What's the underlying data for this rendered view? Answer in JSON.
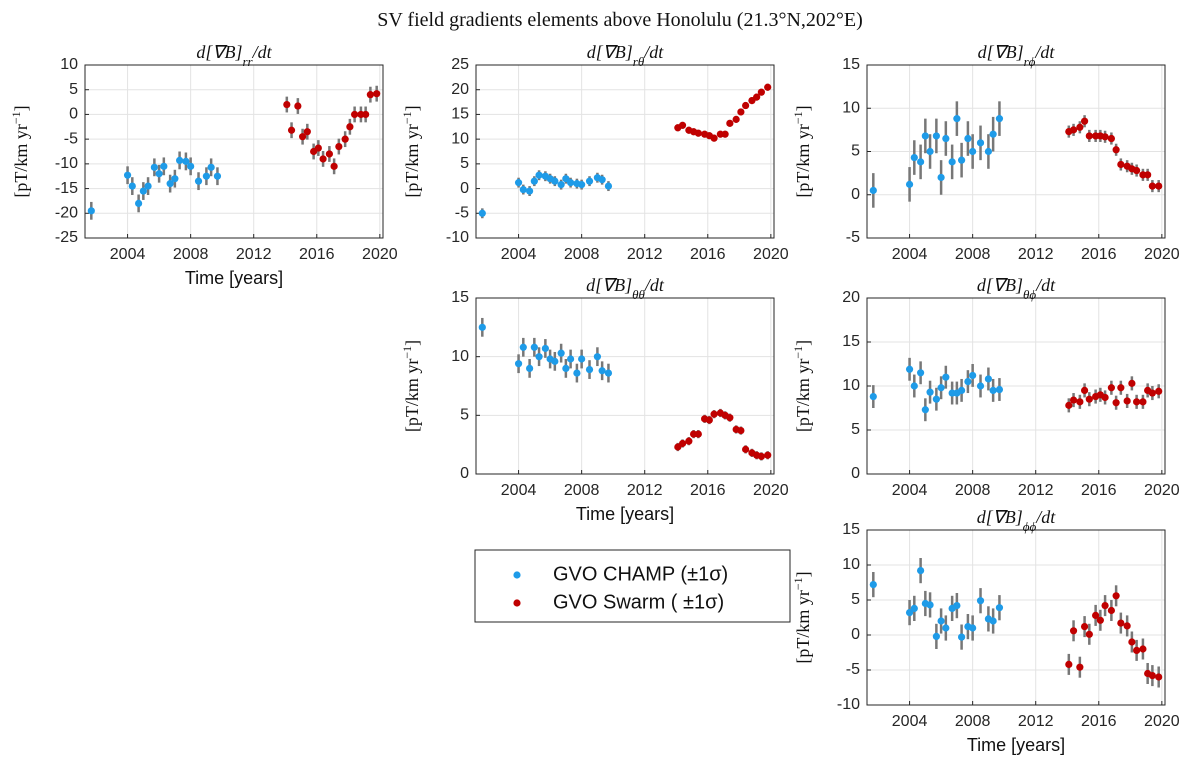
{
  "title": "SV field gradients elements above Honolulu (21.3°N,202°E)",
  "chart_data": [
    {
      "type": "scatter",
      "title": {
        "main": "d[∇B]",
        "sub": "rr",
        "tail": "/dt"
      },
      "ylabel": {
        "main": "[pT/km yr",
        "sup": "−1",
        "tail": "]"
      },
      "xlabel": "Time [years]",
      "xlim": [
        2001.3,
        2020.2
      ],
      "xticks": [
        2004,
        2008,
        2012,
        2016,
        2020
      ],
      "ylim": [
        -25,
        10
      ],
      "yticks": [
        -25,
        -20,
        -15,
        -10,
        -5,
        0,
        5,
        10
      ],
      "grid": true,
      "series": [
        {
          "name": "GVO CHAMP (±1σ)",
          "color": "#1e9be8",
          "x": [
            2001.7,
            2004.0,
            2004.3,
            2004.7,
            2005.0,
            2005.3,
            2005.7,
            2006.0,
            2006.3,
            2006.7,
            2007.0,
            2007.3,
            2007.7,
            2008.0,
            2008.5,
            2009.0,
            2009.3,
            2009.7
          ],
          "values": [
            -19.5,
            -12.3,
            -14.5,
            -18,
            -15.5,
            -14.5,
            -10.7,
            -12,
            -10.5,
            -14,
            -13,
            -9.3,
            -9.5,
            -10.5,
            -13.5,
            -12.5,
            -10.7,
            -12.5
          ],
          "errors": [
            1.8,
            1.8,
            1.8,
            1.8,
            1.8,
            1.8,
            1.8,
            1.8,
            1.8,
            1.8,
            1.8,
            1.8,
            1.8,
            1.8,
            1.8,
            1.8,
            1.8,
            1.8
          ]
        },
        {
          "name": "GVO Swarm ( ±1σ)",
          "color": "#c00000",
          "x": [
            2014.1,
            2014.4,
            2014.8,
            2015.1,
            2015.4,
            2015.8,
            2016.1,
            2016.4,
            2016.8,
            2017.1,
            2017.4,
            2017.8,
            2018.1,
            2018.4,
            2018.8,
            2019.1,
            2019.4,
            2019.8
          ],
          "values": [
            2,
            -3.2,
            1.7,
            -4.5,
            -3.5,
            -7.5,
            -6.8,
            -9,
            -8,
            -10.5,
            -6.5,
            -5,
            -2.5,
            0,
            0,
            0,
            4,
            4.2
          ],
          "errors": [
            1.6,
            1.6,
            1.6,
            1.6,
            1.6,
            1.6,
            1.6,
            1.6,
            1.6,
            1.6,
            1.6,
            1.6,
            1.6,
            1.6,
            1.6,
            1.6,
            1.6,
            1.6
          ]
        }
      ]
    },
    {
      "type": "scatter",
      "title": {
        "main": "d[∇B]",
        "sub": "rθ",
        "tail": "/dt"
      },
      "ylabel": {
        "main": "[pT/km yr",
        "sup": "−1",
        "tail": "]"
      },
      "xlim": [
        2001.3,
        2020.2
      ],
      "xticks": [
        2004,
        2008,
        2012,
        2016,
        2020
      ],
      "ylim": [
        -10,
        25
      ],
      "yticks": [
        -10,
        -5,
        0,
        5,
        10,
        15,
        20,
        25
      ],
      "grid": true,
      "series": [
        {
          "name": "GVO CHAMP (±1σ)",
          "color": "#1e9be8",
          "x": [
            2001.7,
            2004.0,
            2004.3,
            2004.7,
            2005.0,
            2005.3,
            2005.7,
            2006.0,
            2006.3,
            2006.7,
            2007.0,
            2007.3,
            2007.7,
            2008.0,
            2008.5,
            2009.0,
            2009.3,
            2009.7
          ],
          "values": [
            -5,
            1.2,
            -0.2,
            -0.5,
            1.5,
            2.7,
            2.5,
            2,
            1.5,
            0.8,
            2,
            1.2,
            1,
            0.8,
            1.5,
            2.2,
            1.8,
            0.5
          ],
          "errors": [
            1,
            1,
            1,
            1,
            1,
            1,
            1,
            1,
            1,
            1,
            1,
            1,
            1,
            1,
            1,
            1,
            1,
            1
          ]
        },
        {
          "name": "GVO Swarm ( ±1σ)",
          "color": "#c00000",
          "x": [
            2014.1,
            2014.4,
            2014.8,
            2015.1,
            2015.4,
            2015.8,
            2016.1,
            2016.4,
            2016.8,
            2017.1,
            2017.4,
            2017.8,
            2018.1,
            2018.4,
            2018.8,
            2019.1,
            2019.4,
            2019.8
          ],
          "values": [
            12.3,
            12.8,
            11.8,
            11.5,
            11.2,
            11,
            10.7,
            10.2,
            11,
            11,
            13.2,
            14,
            15.5,
            16.8,
            17.8,
            18.5,
            19.5,
            20.5
          ],
          "errors": [
            0.7,
            0.7,
            0.7,
            0.7,
            0.7,
            0.7,
            0.7,
            0.7,
            0.7,
            0.7,
            0.7,
            0.7,
            0.7,
            0.7,
            0.7,
            0.7,
            0.7,
            0.7
          ]
        }
      ]
    },
    {
      "type": "scatter",
      "title": {
        "main": "d[∇B]",
        "sub": "rϕ",
        "tail": "/dt"
      },
      "ylabel": {
        "main": "[pT/km yr",
        "sup": "−1",
        "tail": "]"
      },
      "xlim": [
        2001.3,
        2020.2
      ],
      "xticks": [
        2004,
        2008,
        2012,
        2016,
        2020
      ],
      "ylim": [
        -5,
        15
      ],
      "yticks": [
        -5,
        0,
        5,
        10,
        15
      ],
      "grid": true,
      "series": [
        {
          "name": "GVO CHAMP (±1σ)",
          "color": "#1e9be8",
          "x": [
            2001.7,
            2004.0,
            2004.3,
            2004.7,
            2005.0,
            2005.3,
            2005.7,
            2006.0,
            2006.3,
            2006.7,
            2007.0,
            2007.3,
            2007.7,
            2008.0,
            2008.5,
            2009.0,
            2009.3,
            2009.7
          ],
          "values": [
            0.5,
            1.2,
            4.3,
            3.8,
            6.8,
            5,
            6.8,
            2,
            6.5,
            3.8,
            8.8,
            4,
            6.5,
            5,
            6,
            5,
            7,
            8.8
          ],
          "errors": [
            2,
            2,
            2,
            2,
            2,
            2,
            2,
            2,
            2,
            2,
            2,
            2,
            2,
            2,
            2,
            2,
            2,
            2
          ]
        },
        {
          "name": "GVO Swarm ( ±1σ)",
          "color": "#c00000",
          "x": [
            2014.1,
            2014.4,
            2014.8,
            2015.1,
            2015.4,
            2015.8,
            2016.1,
            2016.4,
            2016.8,
            2017.1,
            2017.4,
            2017.8,
            2018.1,
            2018.4,
            2018.8,
            2019.1,
            2019.4,
            2019.8
          ],
          "values": [
            7.3,
            7.5,
            7.8,
            8.5,
            6.8,
            6.8,
            6.8,
            6.7,
            6.5,
            5.2,
            3.5,
            3.3,
            3,
            2.8,
            2.3,
            2.3,
            1,
            1
          ],
          "errors": [
            0.7,
            0.7,
            0.7,
            0.7,
            0.7,
            0.7,
            0.7,
            0.7,
            0.7,
            0.7,
            0.7,
            0.7,
            0.7,
            0.7,
            0.7,
            0.7,
            0.7,
            0.7
          ]
        }
      ]
    },
    {
      "type": "scatter",
      "title": {
        "main": "d[∇B]",
        "sub": "θθ",
        "tail": "/dt"
      },
      "ylabel": {
        "main": "[pT/km yr",
        "sup": "−1",
        "tail": "]"
      },
      "xlabel": "Time [years]",
      "xlim": [
        2001.3,
        2020.2
      ],
      "xticks": [
        2004,
        2008,
        2012,
        2016,
        2020
      ],
      "ylim": [
        0,
        15
      ],
      "yticks": [
        0,
        5,
        10,
        15
      ],
      "grid": true,
      "series": [
        {
          "name": "GVO CHAMP (±1σ)",
          "color": "#1e9be8",
          "x": [
            2001.7,
            2004.0,
            2004.3,
            2004.7,
            2005.0,
            2005.3,
            2005.7,
            2006.0,
            2006.3,
            2006.7,
            2007.0,
            2007.3,
            2007.7,
            2008.0,
            2008.5,
            2009.0,
            2009.3,
            2009.7
          ],
          "values": [
            12.5,
            9.4,
            10.8,
            9,
            10.8,
            10,
            10.7,
            9.8,
            9.6,
            10.3,
            9,
            9.8,
            8.6,
            9.8,
            8.9,
            10,
            8.8,
            8.6
          ],
          "errors": [
            0.8,
            0.8,
            0.8,
            0.8,
            0.8,
            0.8,
            0.8,
            0.8,
            0.8,
            0.8,
            0.8,
            0.8,
            0.8,
            0.8,
            0.8,
            0.8,
            0.8,
            0.8
          ]
        },
        {
          "name": "GVO Swarm ( ±1σ)",
          "color": "#c00000",
          "x": [
            2014.1,
            2014.4,
            2014.8,
            2015.1,
            2015.4,
            2015.8,
            2016.1,
            2016.4,
            2016.8,
            2017.1,
            2017.4,
            2017.8,
            2018.1,
            2018.4,
            2018.8,
            2019.1,
            2019.4,
            2019.8
          ],
          "values": [
            2.3,
            2.6,
            2.8,
            3.4,
            3.4,
            4.7,
            4.6,
            5.1,
            5.2,
            5,
            4.8,
            3.8,
            3.7,
            2.1,
            1.8,
            1.6,
            1.5,
            1.6
          ],
          "errors": [
            0.35,
            0.35,
            0.35,
            0.35,
            0.35,
            0.35,
            0.35,
            0.35,
            0.35,
            0.35,
            0.35,
            0.35,
            0.35,
            0.35,
            0.35,
            0.35,
            0.35,
            0.35
          ]
        }
      ]
    },
    {
      "type": "scatter",
      "title": {
        "main": "d[∇B]",
        "sub": "θϕ",
        "tail": "/dt"
      },
      "ylabel": {
        "main": "[pT/km yr",
        "sup": "−1",
        "tail": "]"
      },
      "xlim": [
        2001.3,
        2020.2
      ],
      "xticks": [
        2004,
        2008,
        2012,
        2016,
        2020
      ],
      "ylim": [
        0,
        20
      ],
      "yticks": [
        0,
        5,
        10,
        15,
        20
      ],
      "grid": true,
      "series": [
        {
          "name": "GVO CHAMP (±1σ)",
          "color": "#1e9be8",
          "x": [
            2001.7,
            2004.0,
            2004.3,
            2004.7,
            2005.0,
            2005.3,
            2005.7,
            2006.0,
            2006.3,
            2006.7,
            2007.0,
            2007.3,
            2007.7,
            2008.0,
            2008.5,
            2009.0,
            2009.3,
            2009.7
          ],
          "values": [
            8.8,
            11.9,
            10,
            11.5,
            7.3,
            9.3,
            8.5,
            9.8,
            11,
            9.2,
            9.2,
            9.5,
            10.5,
            11.2,
            10,
            10.8,
            9.5,
            9.6
          ],
          "errors": [
            1.3,
            1.3,
            1.3,
            1.3,
            1.3,
            1.3,
            1.3,
            1.3,
            1.3,
            1.3,
            1.3,
            1.3,
            1.3,
            1.3,
            1.3,
            1.3,
            1.3,
            1.3
          ]
        },
        {
          "name": "GVO Swarm ( ±1σ)",
          "color": "#c00000",
          "x": [
            2014.1,
            2014.4,
            2014.8,
            2015.1,
            2015.4,
            2015.8,
            2016.1,
            2016.4,
            2016.8,
            2017.1,
            2017.4,
            2017.8,
            2018.1,
            2018.4,
            2018.8,
            2019.1,
            2019.4,
            2019.8
          ],
          "values": [
            7.8,
            8.4,
            8.2,
            9.5,
            8.5,
            8.8,
            9,
            8.7,
            9.8,
            8.1,
            9.8,
            8.3,
            10.3,
            8.2,
            8.2,
            9.5,
            9.2,
            9.4
          ],
          "errors": [
            0.8,
            0.8,
            0.8,
            0.8,
            0.8,
            0.8,
            0.8,
            0.8,
            0.8,
            0.8,
            0.8,
            0.8,
            0.8,
            0.8,
            0.8,
            0.8,
            0.8,
            0.8
          ]
        }
      ]
    },
    {
      "type": "scatter",
      "title": {
        "main": "d[∇B]",
        "sub": "ϕϕ",
        "tail": "/dt"
      },
      "ylabel": {
        "main": "[pT/km yr",
        "sup": "−1",
        "tail": "]"
      },
      "xlabel": "Time [years]",
      "xlim": [
        2001.3,
        2020.2
      ],
      "xticks": [
        2004,
        2008,
        2012,
        2016,
        2020
      ],
      "ylim": [
        -10,
        15
      ],
      "yticks": [
        -10,
        -5,
        0,
        5,
        10,
        15
      ],
      "grid": true,
      "series": [
        {
          "name": "GVO CHAMP (±1σ)",
          "color": "#1e9be8",
          "x": [
            2001.7,
            2004.0,
            2004.3,
            2004.7,
            2005.0,
            2005.3,
            2005.7,
            2006.0,
            2006.3,
            2006.7,
            2007.0,
            2007.3,
            2007.7,
            2008.0,
            2008.5,
            2009.0,
            2009.3,
            2009.7
          ],
          "values": [
            7.2,
            3.2,
            3.8,
            9.2,
            4.5,
            4.3,
            -0.2,
            2,
            1,
            3.8,
            4.2,
            -0.3,
            1.2,
            1,
            4.9,
            2.3,
            2,
            3.9
          ],
          "errors": [
            1.8,
            1.8,
            1.8,
            1.8,
            1.8,
            1.8,
            1.8,
            1.8,
            1.8,
            1.8,
            1.8,
            1.8,
            1.8,
            1.8,
            1.8,
            1.8,
            1.8,
            1.8
          ]
        },
        {
          "name": "GVO Swarm ( ±1σ)",
          "color": "#c00000",
          "x": [
            2014.1,
            2014.4,
            2014.8,
            2015.1,
            2015.4,
            2015.8,
            2016.1,
            2016.4,
            2016.8,
            2017.1,
            2017.4,
            2017.8,
            2018.1,
            2018.4,
            2018.8,
            2019.1,
            2019.4,
            2019.8
          ],
          "values": [
            -4.2,
            0.6,
            -4.6,
            1.2,
            0.1,
            2.8,
            2.1,
            4.2,
            3.5,
            5.6,
            1.7,
            1.3,
            -1,
            -2.2,
            -2,
            -5.5,
            -5.8,
            -6
          ],
          "errors": [
            1.5,
            1.5,
            1.5,
            1.5,
            1.5,
            1.5,
            1.5,
            1.5,
            1.5,
            1.5,
            1.5,
            1.5,
            1.5,
            1.5,
            1.5,
            1.5,
            1.5,
            1.5
          ]
        }
      ]
    }
  ]
}
